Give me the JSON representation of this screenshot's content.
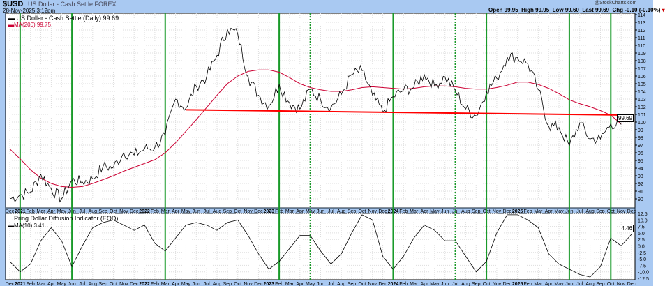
{
  "header": {
    "symbol": "$USD",
    "name": "US Dollar - Cash Settle FOREX",
    "timestamp": "28-Nov-2025 3:12pm",
    "watermark": "@StockCharts.com",
    "open": "Open 99.95",
    "high": "High 99.95",
    "low": "Low 99.60",
    "last": "Last 99.69",
    "chg": "Chg -0.10 (-0.10%)",
    "chg_color": "#cc0000"
  },
  "chart_data": [
    {
      "type": "line",
      "legend": [
        "US Dollar - Cash Settle (Daily) 99.69",
        "MA(200) 99.75"
      ],
      "y_ticks": [
        114,
        113,
        112,
        111,
        110,
        109,
        108,
        107,
        106,
        105,
        104,
        103,
        102,
        101,
        100,
        99,
        98,
        97,
        96,
        95,
        94,
        93,
        92,
        91,
        90
      ],
      "ylim": [
        89,
        115
      ],
      "last_value_label": "99.69",
      "x_months": [
        "Dec",
        "2021",
        "Feb",
        "Mar",
        "Apr",
        "May",
        "Jun",
        "Jul",
        "Aug",
        "Sep",
        "Oct",
        "Nov",
        "Dec",
        "2022",
        "Feb",
        "Mar",
        "Apr",
        "May",
        "Jun",
        "Jul",
        "Aug",
        "Sep",
        "Oct",
        "Nov",
        "Dec",
        "2023",
        "Feb",
        "Mar",
        "Apr",
        "May",
        "Jun",
        "Jul",
        "Aug",
        "Sep",
        "Oct",
        "Nov",
        "Dec",
        "2024",
        "Feb",
        "Mar",
        "Apr",
        "May",
        "Jun",
        "Jul",
        "Aug",
        "Sep",
        "Oct",
        "Nov",
        "Dec",
        "2025",
        "Feb",
        "Mar",
        "Apr",
        "May",
        "Jun",
        "Jul",
        "Aug",
        "Sep",
        "Oct",
        "Nov",
        "Dec"
      ],
      "series": [
        {
          "name": "US Dollar - Cash Settle (Daily)",
          "color": "#000000",
          "values": [
            90.0,
            90.5,
            90.9,
            93.2,
            91.3,
            90.0,
            92.4,
            92.2,
            92.6,
            94.2,
            94.1,
            96.0,
            95.7,
            96.5,
            96.7,
            98.3,
            103.0,
            101.8,
            104.7,
            105.9,
            108.7,
            112.1,
            111.5,
            105.9,
            103.5,
            102.1,
            104.9,
            102.5,
            101.7,
            104.3,
            102.9,
            101.9,
            103.6,
            106.2,
            106.7,
            103.5,
            101.3,
            103.3,
            104.2,
            104.5,
            106.2,
            104.7,
            105.9,
            104.1,
            101.7,
            100.8,
            104.0,
            105.7,
            108.5,
            108.4,
            107.6,
            104.2,
            99.5,
            99.3,
            96.9,
            99.9,
            97.8,
            97.8,
            99.8,
            99.69
          ]
        },
        {
          "name": "MA(200)",
          "color": "#cc0033",
          "values": [
            96.5,
            95.2,
            93.8,
            92.7,
            92.0,
            91.6,
            91.5,
            91.6,
            92.0,
            92.5,
            93.0,
            93.6,
            94.1,
            94.6,
            95.1,
            96.0,
            97.3,
            98.8,
            100.3,
            101.9,
            103.5,
            105.0,
            106.0,
            106.6,
            106.8,
            106.8,
            106.5,
            105.8,
            105.0,
            104.5,
            104.2,
            104.0,
            104.0,
            104.2,
            104.5,
            104.6,
            104.5,
            104.4,
            104.3,
            104.4,
            104.6,
            104.7,
            104.7,
            104.6,
            104.4,
            104.3,
            104.3,
            104.5,
            104.8,
            105.2,
            105.2,
            104.9,
            104.4,
            103.7,
            102.9,
            102.4,
            102.0,
            101.5,
            100.9,
            99.75
          ]
        }
      ],
      "trendline": {
        "color": "#ff0000",
        "start": {
          "month": "2022-05",
          "value": 101.6
        },
        "end": {
          "month": "2025-12",
          "value": 100.9
        }
      }
    },
    {
      "type": "line",
      "title": "Pring Dollar Diffusion Indicator (EOD)",
      "legend": [
        "MA(10) 3.41"
      ],
      "y_ticks": [
        "12.5",
        "10.0",
        "7.5",
        "5.0",
        "2.5",
        "0.0",
        "-2.5",
        "-5.0",
        "-7.5",
        "-10.0",
        "-12.5"
      ],
      "ylim": [
        -12.5,
        12.5
      ],
      "last_value_label": "4.46",
      "series": [
        {
          "name": "Pring Dollar Diffusion Indicator",
          "color": "#000000",
          "values": [
            -6,
            -10,
            -7,
            2,
            7,
            2,
            -8,
            0,
            7,
            9,
            10,
            8,
            6,
            8,
            1,
            -2,
            3,
            8,
            9,
            8,
            6,
            9,
            10,
            4,
            -3,
            -9,
            -6,
            -1,
            4,
            4,
            -2,
            -7,
            -3,
            5,
            12,
            10,
            -4,
            -9,
            -4,
            3,
            8,
            6,
            2,
            2,
            -4,
            -10,
            -6,
            5,
            12,
            12,
            10,
            7,
            -3,
            -7,
            -9,
            -11,
            -12,
            -8,
            3,
            0,
            4.46
          ]
        }
      ]
    }
  ],
  "signal_lines": {
    "color": "#1a9a2a",
    "solid": [
      "2021-01",
      "2021-06",
      "2022-03",
      "2023-02",
      "2024-01",
      "2024-10",
      "2025-06",
      "2025-10"
    ],
    "dashed": [
      "2023-05",
      "2024-07"
    ]
  }
}
